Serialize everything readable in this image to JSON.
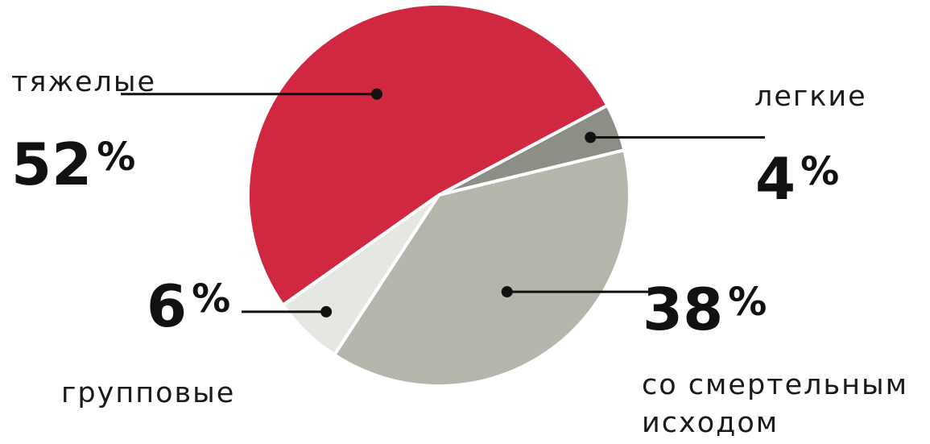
{
  "chart_data": {
    "type": "pie",
    "slices": [
      {
        "label": "легкие",
        "value": 4,
        "value_text": "4",
        "unit": "%",
        "color": "#8b8f85"
      },
      {
        "label": "со смертельным исходом",
        "label_lines": [
          "со смертельным",
          "исходом"
        ],
        "value": 38,
        "value_text": "38",
        "unit": "%",
        "color": "#b5b6ab"
      },
      {
        "label": "групповые",
        "value": 6,
        "value_text": "6",
        "unit": "%",
        "color": "#e6e6e2"
      },
      {
        "label": "тяжелые",
        "value": 52,
        "value_text": "52",
        "unit": "%",
        "color": "#d02841"
      }
    ],
    "title": "",
    "legend": "none"
  }
}
